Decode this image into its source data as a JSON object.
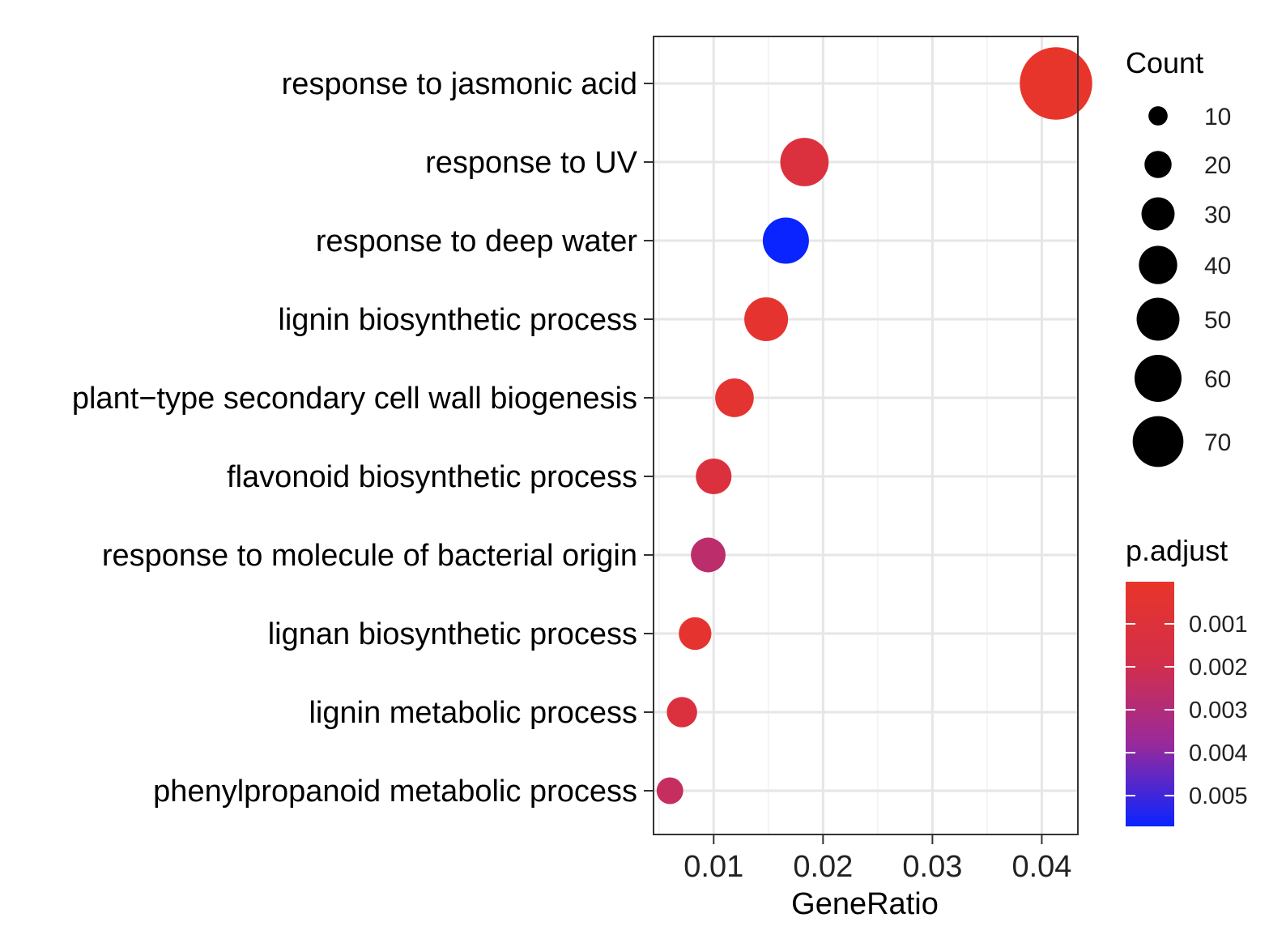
{
  "chart_data": {
    "type": "scatter",
    "title": "",
    "xlabel": "GeneRatio",
    "ylabel": "",
    "xlim": [
      0.0045,
      0.0433
    ],
    "x_ticks": [
      {
        "value": 0.01,
        "label": "0.01"
      },
      {
        "value": 0.02,
        "label": "0.02"
      },
      {
        "value": 0.03,
        "label": "0.03"
      },
      {
        "value": 0.04,
        "label": "0.04"
      }
    ],
    "grid": true,
    "categories": [
      "response to jasmonic acid",
      "response to UV",
      "response to deep water",
      "lignin biosynthetic process",
      "plant−type secondary cell wall biogenesis",
      "flavonoid biosynthetic process",
      "response to molecule of bacterial origin",
      "lignan biosynthetic process",
      "lignin metabolic process",
      "phenylpropanoid metabolic process"
    ],
    "points": [
      {
        "term": "response to jasmonic acid",
        "gene_ratio": 0.0413,
        "count": 74,
        "p_adjust": 0.0001
      },
      {
        "term": "response to UV",
        "gene_ratio": 0.0183,
        "count": 33,
        "p_adjust": 0.0012
      },
      {
        "term": "response to deep water",
        "gene_ratio": 0.0166,
        "count": 30,
        "p_adjust": 0.0058
      },
      {
        "term": "lignin biosynthetic process",
        "gene_ratio": 0.0148,
        "count": 27,
        "p_adjust": 0.0003
      },
      {
        "term": "plant−type secondary cell wall biogenesis",
        "gene_ratio": 0.0119,
        "count": 21,
        "p_adjust": 0.0004
      },
      {
        "term": "flavonoid biosynthetic process",
        "gene_ratio": 0.01,
        "count": 18,
        "p_adjust": 0.0012
      },
      {
        "term": "response to molecule of bacterial origin",
        "gene_ratio": 0.0095,
        "count": 17,
        "p_adjust": 0.0027
      },
      {
        "term": "lignan biosynthetic process",
        "gene_ratio": 0.0083,
        "count": 15,
        "p_adjust": 0.0003
      },
      {
        "term": "lignin metabolic process",
        "gene_ratio": 0.0071,
        "count": 13,
        "p_adjust": 0.0012
      },
      {
        "term": "phenylpropanoid metabolic process",
        "gene_ratio": 0.006,
        "count": 10,
        "p_adjust": 0.0024
      }
    ],
    "size_legend": {
      "title": "Count",
      "entries": [
        {
          "label": "10",
          "value": 10
        },
        {
          "label": "20",
          "value": 20
        },
        {
          "label": "30",
          "value": 30
        },
        {
          "label": "40",
          "value": 40
        },
        {
          "label": "50",
          "value": 50
        },
        {
          "label": "60",
          "value": 60
        },
        {
          "label": "70",
          "value": 70
        }
      ]
    },
    "color_legend": {
      "title": "p.adjust",
      "low_color": "#e8352a",
      "high_color": "#0a24ff",
      "range": [
        0.0,
        0.0058
      ],
      "ticks": [
        {
          "label": "0.001",
          "value": 0.001
        },
        {
          "label": "0.002",
          "value": 0.002
        },
        {
          "label": "0.003",
          "value": 0.003
        },
        {
          "label": "0.004",
          "value": 0.004
        },
        {
          "label": "0.005",
          "value": 0.005
        }
      ]
    },
    "legend_position": "right"
  }
}
